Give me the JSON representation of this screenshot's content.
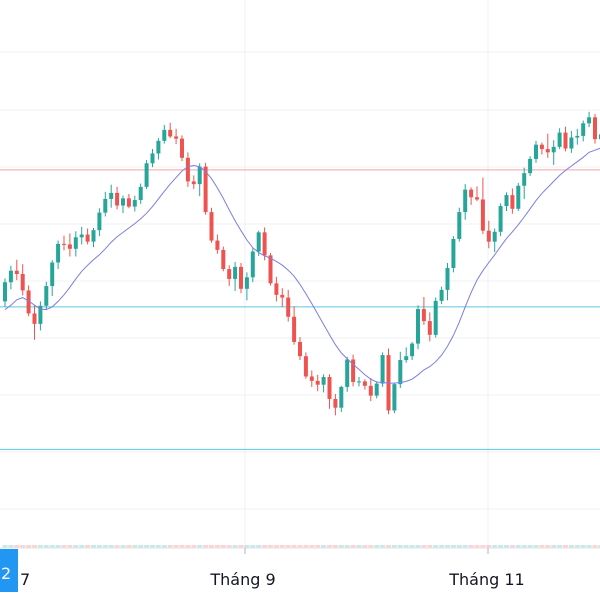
{
  "chart_data": {
    "type": "candlestick",
    "x_ticks": [
      "7",
      "Tháng 9",
      "Tháng 11"
    ],
    "badge_label": "2",
    "colors": {
      "up": "#26a69a",
      "down": "#ef5350",
      "ma": "#7b7fe0",
      "h_line_upper": "#f4a3a3",
      "h_line_lower": "#5fc6e0",
      "grid": "#eef0f3",
      "badge": "#2196f3"
    },
    "ylim": [
      0,
      100
    ],
    "reference_levels": {
      "upper": 69,
      "lower": 44,
      "bottom": 18
    },
    "ohlc": [
      [
        45.0,
        49.2,
        44.0,
        48.5
      ],
      [
        48.5,
        51.5,
        47.2,
        50.6
      ],
      [
        50.6,
        52.6,
        48.9,
        50.0
      ],
      [
        50.0,
        51.8,
        46.1,
        47.0
      ],
      [
        47.0,
        47.9,
        42.3,
        42.8
      ],
      [
        42.8,
        44.3,
        38.0,
        40.9
      ],
      [
        40.9,
        45.0,
        39.7,
        44.2
      ],
      [
        44.2,
        48.6,
        43.5,
        47.8
      ],
      [
        47.8,
        52.5,
        46.0,
        52.1
      ],
      [
        52.1,
        56.1,
        50.9,
        55.5
      ],
      [
        55.5,
        57.0,
        54.3,
        55.4
      ],
      [
        55.4,
        57.4,
        53.2,
        54.6
      ],
      [
        54.6,
        57.8,
        53.2,
        56.7
      ],
      [
        56.7,
        58.6,
        55.4,
        57.2
      ],
      [
        57.2,
        58.3,
        55.4,
        55.9
      ],
      [
        55.9,
        58.4,
        54.9,
        58.0
      ],
      [
        58.0,
        62.0,
        56.9,
        61.2
      ],
      [
        61.2,
        65.0,
        60.5,
        63.7
      ],
      [
        63.7,
        66.3,
        62.1,
        64.8
      ],
      [
        64.8,
        65.9,
        61.8,
        62.5
      ],
      [
        62.5,
        64.3,
        61.1,
        63.8
      ],
      [
        63.8,
        64.6,
        62.0,
        62.3
      ],
      [
        62.3,
        64.3,
        61.4,
        63.5
      ],
      [
        63.5,
        66.5,
        62.8,
        65.9
      ],
      [
        65.9,
        70.8,
        65.5,
        70.2
      ],
      [
        70.2,
        72.8,
        69.5,
        72.0
      ],
      [
        72.0,
        74.8,
        70.9,
        74.3
      ],
      [
        74.3,
        77.2,
        73.8,
        76.3
      ],
      [
        76.3,
        77.6,
        74.8,
        75.1
      ],
      [
        75.1,
        76.5,
        73.7,
        74.7
      ],
      [
        74.7,
        75.3,
        70.6,
        71.2
      ],
      [
        71.2,
        72.2,
        65.9,
        66.9
      ],
      [
        66.9,
        68.0,
        65.5,
        66.4
      ],
      [
        66.4,
        70.2,
        64.2,
        69.6
      ],
      [
        69.6,
        70.3,
        60.8,
        61.3
      ],
      [
        61.3,
        62.1,
        55.7,
        56.1
      ],
      [
        56.1,
        57.2,
        53.7,
        54.4
      ],
      [
        54.4,
        55.0,
        50.5,
        50.9
      ],
      [
        50.9,
        51.6,
        47.8,
        49.1
      ],
      [
        49.1,
        52.2,
        46.9,
        51.3
      ],
      [
        51.3,
        52.0,
        46.5,
        47.3
      ],
      [
        47.3,
        50.3,
        45.2,
        49.4
      ],
      [
        49.4,
        54.7,
        48.5,
        54.1
      ],
      [
        54.1,
        57.9,
        53.3,
        57.6
      ],
      [
        57.6,
        58.5,
        52.5,
        53.4
      ],
      [
        53.4,
        53.8,
        47.9,
        48.3
      ],
      [
        48.3,
        49.5,
        45.0,
        46.2
      ],
      [
        46.2,
        47.4,
        44.0,
        45.7
      ],
      [
        45.7,
        47.1,
        41.3,
        42.2
      ],
      [
        42.2,
        44.1,
        37.1,
        37.6
      ],
      [
        37.6,
        38.5,
        34.3,
        35.0
      ],
      [
        35.0,
        35.7,
        30.9,
        31.3
      ],
      [
        31.3,
        32.4,
        29.4,
        30.5
      ],
      [
        30.5,
        31.6,
        28.6,
        29.8
      ],
      [
        29.8,
        31.7,
        28.4,
        31.2
      ],
      [
        31.2,
        31.7,
        25.4,
        27.2
      ],
      [
        27.2,
        28.1,
        24.2,
        25.6
      ],
      [
        25.6,
        29.6,
        24.8,
        29.4
      ],
      [
        29.4,
        34.9,
        28.5,
        34.4
      ],
      [
        34.4,
        35.3,
        29.5,
        30.3
      ],
      [
        30.3,
        31.2,
        29.5,
        30.4
      ],
      [
        30.4,
        30.8,
        28.9,
        29.6
      ],
      [
        29.6,
        31.0,
        26.8,
        27.8
      ],
      [
        27.8,
        30.4,
        27.3,
        30.0
      ],
      [
        30.0,
        35.7,
        29.4,
        35.2
      ],
      [
        35.2,
        36.4,
        24.4,
        25.1
      ],
      [
        25.1,
        30.2,
        24.6,
        29.9
      ],
      [
        29.9,
        35.8,
        29.2,
        34.3
      ],
      [
        34.3,
        36.6,
        33.8,
        35.0
      ],
      [
        35.0,
        37.6,
        34.3,
        37.3
      ],
      [
        37.3,
        44.3,
        36.3,
        43.6
      ],
      [
        43.6,
        45.8,
        40.7,
        41.4
      ],
      [
        41.4,
        43.0,
        37.7,
        38.9
      ],
      [
        38.9,
        45.7,
        38.4,
        45.1
      ],
      [
        45.1,
        47.7,
        44.5,
        47.1
      ],
      [
        47.1,
        52.0,
        45.2,
        51.1
      ],
      [
        51.1,
        56.9,
        50.3,
        56.4
      ],
      [
        56.4,
        62.1,
        55.9,
        61.3
      ],
      [
        61.3,
        66.4,
        59.9,
        65.4
      ],
      [
        65.4,
        65.8,
        62.6,
        64.0
      ],
      [
        64.0,
        66.0,
        63.3,
        63.6
      ],
      [
        63.6,
        67.6,
        57.3,
        57.9
      ],
      [
        57.9,
        59.7,
        54.7,
        55.9
      ],
      [
        55.9,
        58.3,
        54.0,
        57.7
      ],
      [
        57.7,
        62.9,
        56.9,
        62.4
      ],
      [
        62.4,
        64.9,
        61.5,
        64.4
      ],
      [
        64.4,
        65.6,
        61.0,
        61.9
      ],
      [
        61.9,
        66.6,
        61.5,
        66.1
      ],
      [
        66.1,
        69.4,
        63.7,
        68.4
      ],
      [
        68.4,
        71.5,
        67.9,
        71.0
      ],
      [
        71.0,
        74.3,
        70.3,
        73.6
      ],
      [
        73.6,
        74.0,
        71.8,
        72.8
      ],
      [
        72.8,
        75.6,
        71.2,
        72.2
      ],
      [
        72.2,
        74.4,
        69.9,
        73.2
      ],
      [
        73.2,
        76.6,
        72.8,
        75.8
      ],
      [
        75.8,
        76.9,
        72.4,
        72.9
      ],
      [
        72.9,
        76.1,
        72.1,
        74.9
      ],
      [
        74.9,
        76.5,
        73.6,
        75.2
      ],
      [
        75.2,
        78.0,
        74.2,
        77.5
      ],
      [
        77.5,
        79.6,
        76.8,
        78.6
      ],
      [
        78.6,
        79.2,
        73.8,
        74.6
      ],
      [
        74.6,
        76.6,
        73.0,
        75.5
      ]
    ],
    "moving_average": [
      43.5,
      44.3,
      45.3,
      45.7,
      45.1,
      44.3,
      43.6,
      43.5,
      44.0,
      45.0,
      46.2,
      47.6,
      49.1,
      50.5,
      51.6,
      52.6,
      53.5,
      54.6,
      55.8,
      56.8,
      57.6,
      58.4,
      59.2,
      60.1,
      61.1,
      62.3,
      63.7,
      65.1,
      66.4,
      67.6,
      68.8,
      69.6,
      69.8,
      69.6,
      68.7,
      67.4,
      65.7,
      63.8,
      61.7,
      59.7,
      57.9,
      56.2,
      54.8,
      53.9,
      53.3,
      52.9,
      52.3,
      51.6,
      50.7,
      49.6,
      48.1,
      46.4,
      44.6,
      42.7,
      40.8,
      38.9,
      37.1,
      35.6,
      34.5,
      33.5,
      32.6,
      31.6,
      30.8,
      30.3,
      30.2,
      30.1,
      30.1,
      30.2,
      30.4,
      30.8,
      31.6,
      32.5,
      33.1,
      34.0,
      35.2,
      36.8,
      38.8,
      41.2,
      44.0,
      46.6,
      48.9,
      50.6,
      52.1,
      53.5,
      55.0,
      56.5,
      57.7,
      59.0,
      60.4,
      61.9,
      63.4,
      64.7,
      65.8,
      66.9,
      68.0,
      68.9,
      69.7,
      70.5,
      71.3,
      72.2,
      72.6,
      73.0
    ]
  }
}
